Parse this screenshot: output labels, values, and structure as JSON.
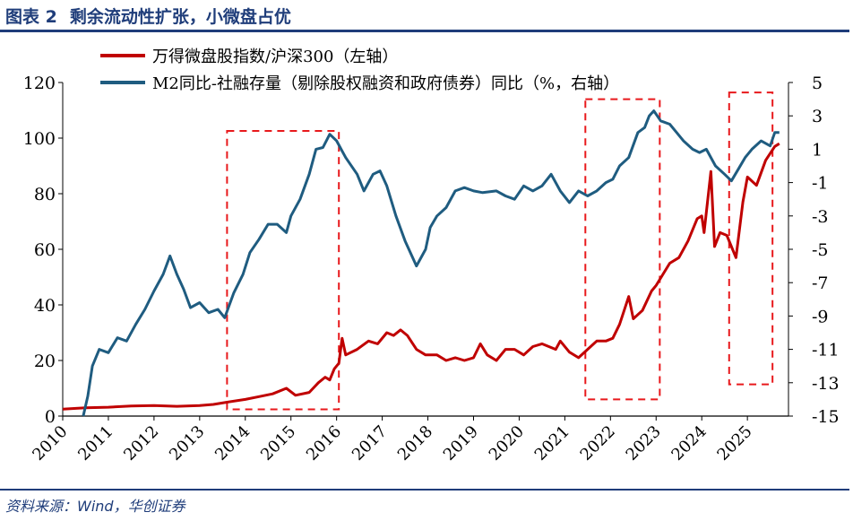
{
  "header": {
    "figure_no": "图表 2",
    "title": "剩余流动性扩张，小微盘占优"
  },
  "footer": {
    "source": "资料来源：Wind，华创证券"
  },
  "colors": {
    "brand": "#1f3d7a",
    "series_red": "#c00000",
    "series_blue": "#1f5c80",
    "highlight_box": "#e8191c"
  },
  "chart_data": {
    "type": "line",
    "title": "剩余流动性扩张，小微盘占优",
    "xlabel": "",
    "ylabel": "",
    "x_ticks": [
      "2010",
      "2011",
      "2012",
      "2013",
      "2014",
      "2015",
      "2016",
      "2017",
      "2018",
      "2019",
      "2020",
      "2021",
      "2022",
      "2023",
      "2024",
      "2025"
    ],
    "x_range": [
      2010.0,
      2025.9
    ],
    "y_left": {
      "ticks": [
        0,
        20,
        40,
        60,
        80,
        100,
        120
      ],
      "ylim": [
        0,
        120
      ]
    },
    "y_right": {
      "ticks": [
        -15,
        -13,
        -11,
        -9,
        -7,
        -5,
        -3,
        -1,
        1,
        3,
        5
      ],
      "ylim": [
        -15,
        5
      ]
    },
    "legend_position": "top",
    "series": [
      {
        "name": "万得微盘股指数/沪深300（左轴）",
        "axis": "left",
        "color": "#c00000",
        "points": [
          [
            2010.0,
            2.5
          ],
          [
            2010.5,
            3
          ],
          [
            2011.0,
            3.2
          ],
          [
            2011.5,
            3.6
          ],
          [
            2012.0,
            3.8
          ],
          [
            2012.5,
            3.5
          ],
          [
            2013.0,
            3.8
          ],
          [
            2013.3,
            4.2
          ],
          [
            2013.6,
            5
          ],
          [
            2014.0,
            6
          ],
          [
            2014.3,
            7
          ],
          [
            2014.6,
            8
          ],
          [
            2014.9,
            10
          ],
          [
            2015.1,
            7.5
          ],
          [
            2015.4,
            8.5
          ],
          [
            2015.6,
            12
          ],
          [
            2015.75,
            14
          ],
          [
            2015.85,
            13
          ],
          [
            2015.95,
            17
          ],
          [
            2016.05,
            19
          ],
          [
            2016.12,
            28
          ],
          [
            2016.2,
            22
          ],
          [
            2016.45,
            24
          ],
          [
            2016.7,
            27
          ],
          [
            2016.9,
            26
          ],
          [
            2017.1,
            30
          ],
          [
            2017.25,
            29
          ],
          [
            2017.4,
            31
          ],
          [
            2017.55,
            29
          ],
          [
            2017.75,
            24
          ],
          [
            2017.95,
            22
          ],
          [
            2018.2,
            22
          ],
          [
            2018.4,
            20
          ],
          [
            2018.6,
            21
          ],
          [
            2018.8,
            20
          ],
          [
            2019.0,
            21
          ],
          [
            2019.15,
            26
          ],
          [
            2019.3,
            22
          ],
          [
            2019.5,
            20
          ],
          [
            2019.7,
            24
          ],
          [
            2019.9,
            24
          ],
          [
            2020.1,
            22
          ],
          [
            2020.3,
            25
          ],
          [
            2020.5,
            26
          ],
          [
            2020.8,
            24
          ],
          [
            2020.9,
            27
          ],
          [
            2021.1,
            23
          ],
          [
            2021.3,
            21
          ],
          [
            2021.5,
            24
          ],
          [
            2021.7,
            27
          ],
          [
            2021.9,
            27
          ],
          [
            2022.05,
            28
          ],
          [
            2022.2,
            33
          ],
          [
            2022.4,
            43
          ],
          [
            2022.5,
            35
          ],
          [
            2022.7,
            38
          ],
          [
            2022.9,
            45
          ],
          [
            2023.0,
            47
          ],
          [
            2023.15,
            51
          ],
          [
            2023.3,
            55
          ],
          [
            2023.5,
            57
          ],
          [
            2023.7,
            63
          ],
          [
            2023.9,
            71
          ],
          [
            2024.0,
            72
          ],
          [
            2024.05,
            66
          ],
          [
            2024.2,
            88
          ],
          [
            2024.28,
            61
          ],
          [
            2024.4,
            66
          ],
          [
            2024.55,
            65
          ],
          [
            2024.75,
            57
          ],
          [
            2024.9,
            77
          ],
          [
            2025.0,
            86
          ],
          [
            2025.2,
            83
          ],
          [
            2025.4,
            92
          ],
          [
            2025.6,
            97
          ],
          [
            2025.7,
            98
          ]
        ]
      },
      {
        "name": "M2同比-社融存量（剔除股权融资和政府债券）同比（%，右轴）",
        "axis": "right",
        "color": "#1f5c80",
        "points": [
          [
            2010.45,
            -15
          ],
          [
            2010.55,
            -13.8
          ],
          [
            2010.65,
            -12
          ],
          [
            2010.8,
            -11
          ],
          [
            2011.0,
            -11.2
          ],
          [
            2011.2,
            -10.3
          ],
          [
            2011.4,
            -10.5
          ],
          [
            2011.6,
            -9.5
          ],
          [
            2011.8,
            -8.6
          ],
          [
            2012.0,
            -7.5
          ],
          [
            2012.2,
            -6.5
          ],
          [
            2012.35,
            -5.4
          ],
          [
            2012.5,
            -6.5
          ],
          [
            2012.65,
            -7.4
          ],
          [
            2012.8,
            -8.5
          ],
          [
            2013.0,
            -8.2
          ],
          [
            2013.2,
            -8.8
          ],
          [
            2013.4,
            -8.6
          ],
          [
            2013.55,
            -9.1
          ],
          [
            2013.75,
            -7.6
          ],
          [
            2013.95,
            -6.5
          ],
          [
            2014.1,
            -5.2
          ],
          [
            2014.3,
            -4.4
          ],
          [
            2014.5,
            -3.5
          ],
          [
            2014.7,
            -3.5
          ],
          [
            2014.9,
            -4
          ],
          [
            2015.0,
            -3
          ],
          [
            2015.2,
            -2
          ],
          [
            2015.4,
            -0.5
          ],
          [
            2015.55,
            1
          ],
          [
            2015.7,
            1.1
          ],
          [
            2015.85,
            1.9
          ],
          [
            2016.0,
            1.5
          ],
          [
            2016.2,
            0.5
          ],
          [
            2016.45,
            -0.5
          ],
          [
            2016.6,
            -1.5
          ],
          [
            2016.8,
            -0.5
          ],
          [
            2016.95,
            -0.3
          ],
          [
            2017.1,
            -1.2
          ],
          [
            2017.3,
            -3
          ],
          [
            2017.5,
            -4.5
          ],
          [
            2017.75,
            -6
          ],
          [
            2017.95,
            -5
          ],
          [
            2018.05,
            -3.7
          ],
          [
            2018.2,
            -3
          ],
          [
            2018.4,
            -2.5
          ],
          [
            2018.6,
            -1.5
          ],
          [
            2018.8,
            -1.3
          ],
          [
            2019.0,
            -1.5
          ],
          [
            2019.2,
            -1.6
          ],
          [
            2019.5,
            -1.5
          ],
          [
            2019.7,
            -1.8
          ],
          [
            2019.9,
            -2
          ],
          [
            2020.1,
            -1.2
          ],
          [
            2020.3,
            -1.5
          ],
          [
            2020.5,
            -1.2
          ],
          [
            2020.7,
            -0.5
          ],
          [
            2020.9,
            -1.5
          ],
          [
            2021.1,
            -2.2
          ],
          [
            2021.3,
            -1.5
          ],
          [
            2021.5,
            -1.8
          ],
          [
            2021.7,
            -1.5
          ],
          [
            2021.9,
            -1
          ],
          [
            2022.05,
            -0.8
          ],
          [
            2022.2,
            0
          ],
          [
            2022.4,
            0.5
          ],
          [
            2022.6,
            2
          ],
          [
            2022.75,
            2.3
          ],
          [
            2022.85,
            3
          ],
          [
            2022.95,
            3.3
          ],
          [
            2023.1,
            2.7
          ],
          [
            2023.3,
            2.5
          ],
          [
            2023.45,
            2
          ],
          [
            2023.6,
            1.5
          ],
          [
            2023.8,
            1
          ],
          [
            2023.95,
            0.8
          ],
          [
            2024.1,
            1
          ],
          [
            2024.3,
            0
          ],
          [
            2024.5,
            -0.5
          ],
          [
            2024.65,
            -0.9
          ],
          [
            2024.8,
            -0.2
          ],
          [
            2024.95,
            0.5
          ],
          [
            2025.1,
            1
          ],
          [
            2025.3,
            1.5
          ],
          [
            2025.5,
            1.2
          ],
          [
            2025.6,
            2
          ],
          [
            2025.7,
            2
          ]
        ]
      }
    ],
    "highlight_periods": [
      {
        "x_start": 2013.6,
        "x_end": 2016.05
      },
      {
        "x_start": 2021.45,
        "x_end": 2023.08
      },
      {
        "x_start": 2024.6,
        "x_end": 2025.55
      }
    ]
  }
}
